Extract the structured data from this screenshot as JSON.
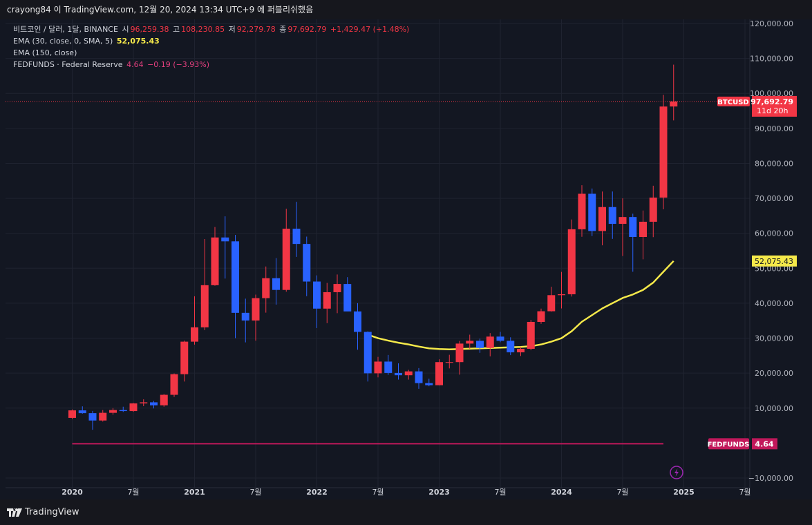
{
  "topbar": {
    "text": "crayong84 이 TradingView.com, 12월 20, 2024 13:34 UTC+9 에 퍼블리쉬했음"
  },
  "legend": {
    "symbol": "비트코인 / 달러, 1달, BINANCE",
    "o_label": "시",
    "o": "96,259.38",
    "h_label": "고",
    "h": "108,230.85",
    "l_label": "저",
    "l": "92,279.78",
    "c_label": "종",
    "c": "97,692.79",
    "change": "+1,429.47 (+1.48%)",
    "ema30": "EMA (30, close, 0, SMA, 5)",
    "ema30_val": "52,075.43",
    "ema150": "EMA (150, close)",
    "fed": "FEDFUNDS · Federal Reserve",
    "fed_val": "4.64",
    "fed_change": "−0.19 (−3.93%)"
  },
  "footer": {
    "brand": "TradingView"
  },
  "colors": {
    "up": "#f23645",
    "down": "#2962ff",
    "ema": "#f5e94a",
    "fed": "#c2185b",
    "bg": "#131722"
  },
  "chart_data": {
    "type": "candlestick",
    "symbol": "BTCUSD",
    "interval": "1M",
    "exchange": "BINANCE",
    "y_axis": {
      "min": -10000,
      "max": 120000,
      "ticks": [
        -10000,
        10000,
        20000,
        30000,
        40000,
        50000,
        60000,
        70000,
        80000,
        90000,
        100000,
        110000,
        120000
      ],
      "tick_labels": [
        "−10,000.00",
        "10,000.00",
        "20,000.00",
        "30,000.00",
        "40,000.00",
        "50,000.00",
        "60,000.00",
        "70,000.00",
        "80,000.00",
        "90,000.00",
        "100,000.00",
        "110,000.00",
        "120,000.00"
      ]
    },
    "x_axis": {
      "ticks": [
        {
          "label": "2020",
          "date": "2020-01"
        },
        {
          "label": "7월",
          "date": "2020-07"
        },
        {
          "label": "2021",
          "date": "2021-01"
        },
        {
          "label": "7월",
          "date": "2021-07"
        },
        {
          "label": "2022",
          "date": "2022-01"
        },
        {
          "label": "7월",
          "date": "2022-07"
        },
        {
          "label": "2023",
          "date": "2023-01"
        },
        {
          "label": "7월",
          "date": "2023-07"
        },
        {
          "label": "2024",
          "date": "2024-01"
        },
        {
          "label": "7월",
          "date": "2024-07"
        },
        {
          "label": "2025",
          "date": "2025-01"
        },
        {
          "label": "7월",
          "date": "2025-07"
        }
      ]
    },
    "candles": [
      {
        "t": "2020-01",
        "o": 7200,
        "h": 9600,
        "l": 6900,
        "c": 9350
      },
      {
        "t": "2020-02",
        "o": 9350,
        "h": 10500,
        "l": 8400,
        "c": 8550
      },
      {
        "t": "2020-03",
        "o": 8550,
        "h": 9200,
        "l": 3800,
        "c": 6450
      },
      {
        "t": "2020-04",
        "o": 6450,
        "h": 9450,
        "l": 6150,
        "c": 8650
      },
      {
        "t": "2020-05",
        "o": 8650,
        "h": 10000,
        "l": 8100,
        "c": 9450
      },
      {
        "t": "2020-06",
        "o": 9450,
        "h": 10400,
        "l": 8900,
        "c": 9150
      },
      {
        "t": "2020-07",
        "o": 9150,
        "h": 11450,
        "l": 8950,
        "c": 11350
      },
      {
        "t": "2020-08",
        "o": 11350,
        "h": 12500,
        "l": 10550,
        "c": 11650
      },
      {
        "t": "2020-09",
        "o": 11650,
        "h": 12050,
        "l": 9900,
        "c": 10800
      },
      {
        "t": "2020-10",
        "o": 10800,
        "h": 14000,
        "l": 10400,
        "c": 13800
      },
      {
        "t": "2020-11",
        "o": 13800,
        "h": 19900,
        "l": 13200,
        "c": 19700
      },
      {
        "t": "2020-12",
        "o": 19700,
        "h": 29300,
        "l": 17600,
        "c": 29000
      },
      {
        "t": "2021-01",
        "o": 29000,
        "h": 41950,
        "l": 28150,
        "c": 33100
      },
      {
        "t": "2021-02",
        "o": 33100,
        "h": 58350,
        "l": 32300,
        "c": 45150
      },
      {
        "t": "2021-03",
        "o": 45150,
        "h": 61800,
        "l": 45000,
        "c": 58800
      },
      {
        "t": "2021-04",
        "o": 58800,
        "h": 64850,
        "l": 47050,
        "c": 57700
      },
      {
        "t": "2021-05",
        "o": 57700,
        "h": 59550,
        "l": 30000,
        "c": 37250
      },
      {
        "t": "2021-06",
        "o": 37250,
        "h": 41300,
        "l": 28800,
        "c": 35050
      },
      {
        "t": "2021-07",
        "o": 35050,
        "h": 42450,
        "l": 29300,
        "c": 41450
      },
      {
        "t": "2021-08",
        "o": 41450,
        "h": 50500,
        "l": 37300,
        "c": 47150
      },
      {
        "t": "2021-09",
        "o": 47150,
        "h": 52900,
        "l": 39600,
        "c": 43800
      },
      {
        "t": "2021-10",
        "o": 43800,
        "h": 67000,
        "l": 43300,
        "c": 61300
      },
      {
        "t": "2021-11",
        "o": 61300,
        "h": 69000,
        "l": 53250,
        "c": 56950
      },
      {
        "t": "2021-12",
        "o": 56950,
        "h": 59050,
        "l": 42000,
        "c": 46200
      },
      {
        "t": "2022-01",
        "o": 46200,
        "h": 47950,
        "l": 32900,
        "c": 38450
      },
      {
        "t": "2022-02",
        "o": 38450,
        "h": 45800,
        "l": 34300,
        "c": 43150
      },
      {
        "t": "2022-03",
        "o": 43150,
        "h": 48200,
        "l": 37150,
        "c": 45500
      },
      {
        "t": "2022-04",
        "o": 45500,
        "h": 47450,
        "l": 37700,
        "c": 37650
      },
      {
        "t": "2022-05",
        "o": 37650,
        "h": 40000,
        "l": 26700,
        "c": 31800
      },
      {
        "t": "2022-06",
        "o": 31800,
        "h": 31950,
        "l": 17600,
        "c": 19950
      },
      {
        "t": "2022-07",
        "o": 19950,
        "h": 24650,
        "l": 18800,
        "c": 23300
      },
      {
        "t": "2022-08",
        "o": 23300,
        "h": 25200,
        "l": 19500,
        "c": 20050
      },
      {
        "t": "2022-09",
        "o": 20050,
        "h": 22800,
        "l": 18150,
        "c": 19400
      },
      {
        "t": "2022-10",
        "o": 19400,
        "h": 20950,
        "l": 18150,
        "c": 20500
      },
      {
        "t": "2022-11",
        "o": 20500,
        "h": 21450,
        "l": 15500,
        "c": 17150
      },
      {
        "t": "2022-12",
        "o": 17150,
        "h": 18400,
        "l": 16250,
        "c": 16550
      },
      {
        "t": "2023-01",
        "o": 16550,
        "h": 23950,
        "l": 16500,
        "c": 23150
      },
      {
        "t": "2023-02",
        "o": 23150,
        "h": 25250,
        "l": 21350,
        "c": 23150
      },
      {
        "t": "2023-03",
        "o": 23150,
        "h": 29200,
        "l": 19550,
        "c": 28450
      },
      {
        "t": "2023-04",
        "o": 28450,
        "h": 31000,
        "l": 26950,
        "c": 29250
      },
      {
        "t": "2023-05",
        "o": 29250,
        "h": 29850,
        "l": 25800,
        "c": 27200
      },
      {
        "t": "2023-06",
        "o": 27200,
        "h": 31450,
        "l": 24800,
        "c": 30450
      },
      {
        "t": "2023-07",
        "o": 30450,
        "h": 31800,
        "l": 28850,
        "c": 29250
      },
      {
        "t": "2023-08",
        "o": 29250,
        "h": 30250,
        "l": 25150,
        "c": 25950
      },
      {
        "t": "2023-09",
        "o": 25950,
        "h": 27500,
        "l": 24900,
        "c": 26950
      },
      {
        "t": "2023-10",
        "o": 26950,
        "h": 35200,
        "l": 26550,
        "c": 34650
      },
      {
        "t": "2023-11",
        "o": 34650,
        "h": 38450,
        "l": 34100,
        "c": 37700
      },
      {
        "t": "2023-12",
        "o": 37700,
        "h": 44700,
        "l": 37600,
        "c": 42300
      },
      {
        "t": "2024-01",
        "o": 42300,
        "h": 48950,
        "l": 38500,
        "c": 42550
      },
      {
        "t": "2024-02",
        "o": 42550,
        "h": 63950,
        "l": 41900,
        "c": 61150
      },
      {
        "t": "2024-03",
        "o": 61150,
        "h": 73750,
        "l": 59000,
        "c": 71300
      },
      {
        "t": "2024-04",
        "o": 71300,
        "h": 72800,
        "l": 59200,
        "c": 60650
      },
      {
        "t": "2024-05",
        "o": 60650,
        "h": 71950,
        "l": 56550,
        "c": 67500
      },
      {
        "t": "2024-06",
        "o": 67500,
        "h": 71950,
        "l": 58400,
        "c": 62700
      },
      {
        "t": "2024-07",
        "o": 62700,
        "h": 70000,
        "l": 53500,
        "c": 64650
      },
      {
        "t": "2024-08",
        "o": 64650,
        "h": 65600,
        "l": 49000,
        "c": 58950
      },
      {
        "t": "2024-09",
        "o": 58950,
        "h": 66500,
        "l": 52550,
        "c": 63300
      },
      {
        "t": "2024-10",
        "o": 63300,
        "h": 73600,
        "l": 58900,
        "c": 70200
      },
      {
        "t": "2024-11",
        "o": 70200,
        "h": 99600,
        "l": 66850,
        "c": 96250
      },
      {
        "t": "2024-12",
        "o": 96259.38,
        "h": 108230.85,
        "l": 92279.78,
        "c": 97692.79
      }
    ],
    "ema": {
      "name": "EMA (30, close, 0, SMA, 5)",
      "points": [
        {
          "t": "2022-06",
          "v": 31000
        },
        {
          "t": "2022-07",
          "v": 30000
        },
        {
          "t": "2022-08",
          "v": 29300
        },
        {
          "t": "2022-09",
          "v": 28700
        },
        {
          "t": "2022-10",
          "v": 28200
        },
        {
          "t": "2022-11",
          "v": 27600
        },
        {
          "t": "2022-12",
          "v": 27100
        },
        {
          "t": "2023-01",
          "v": 26900
        },
        {
          "t": "2023-02",
          "v": 26800
        },
        {
          "t": "2023-03",
          "v": 26900
        },
        {
          "t": "2023-04",
          "v": 27000
        },
        {
          "t": "2023-05",
          "v": 27100
        },
        {
          "t": "2023-06",
          "v": 27200
        },
        {
          "t": "2023-07",
          "v": 27300
        },
        {
          "t": "2023-08",
          "v": 27400
        },
        {
          "t": "2023-09",
          "v": 27500
        },
        {
          "t": "2023-10",
          "v": 27700
        },
        {
          "t": "2023-11",
          "v": 28200
        },
        {
          "t": "2023-12",
          "v": 29000
        },
        {
          "t": "2024-01",
          "v": 30000
        },
        {
          "t": "2024-02",
          "v": 32000
        },
        {
          "t": "2024-03",
          "v": 34700
        },
        {
          "t": "2024-04",
          "v": 36600
        },
        {
          "t": "2024-05",
          "v": 38500
        },
        {
          "t": "2024-06",
          "v": 40000
        },
        {
          "t": "2024-07",
          "v": 41500
        },
        {
          "t": "2024-08",
          "v": 42500
        },
        {
          "t": "2024-09",
          "v": 43800
        },
        {
          "t": "2024-10",
          "v": 45900
        },
        {
          "t": "2024-11",
          "v": 49000
        },
        {
          "t": "2024-12",
          "v": 52075.43
        }
      ]
    },
    "fedfunds": {
      "name": "FEDFUNDS",
      "value": 4.64,
      "plot_level": -200,
      "from": "2020-01",
      "to": "2024-11"
    },
    "last_price": {
      "label": "BTCUSD",
      "value": "97,692.79",
      "countdown": "11d 20h",
      "level": 97692.79
    },
    "ema_label": {
      "value": "52,075.43",
      "level": 52075.43
    },
    "fed_label": {
      "label": "FEDFUNDS",
      "value": "4.64"
    }
  }
}
